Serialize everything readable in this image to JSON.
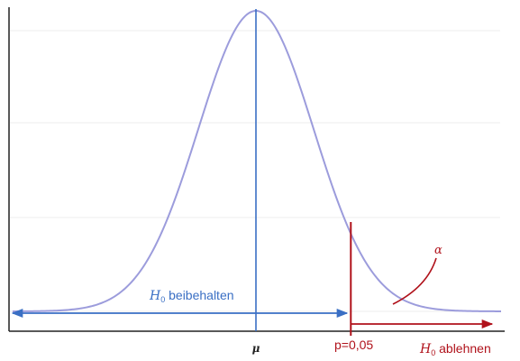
{
  "labels": {
    "h0_symbol": "H",
    "h0_subscript": "0",
    "keep_text": " beibehalten",
    "reject_text": " ablehnen",
    "mu": "μ",
    "p_value": "p=0,05",
    "alpha": "α"
  },
  "colors": {
    "curve": "#9c9cdc",
    "keep": "#3a6fc4",
    "reject": "#b0121b",
    "axis": "#222222",
    "grid": "#ececec"
  },
  "distribution": {
    "mean": 0,
    "sd": 1,
    "x_range": [
      -3.8,
      3.8
    ],
    "critical_z": 1.645,
    "significance": 0.05
  }
}
